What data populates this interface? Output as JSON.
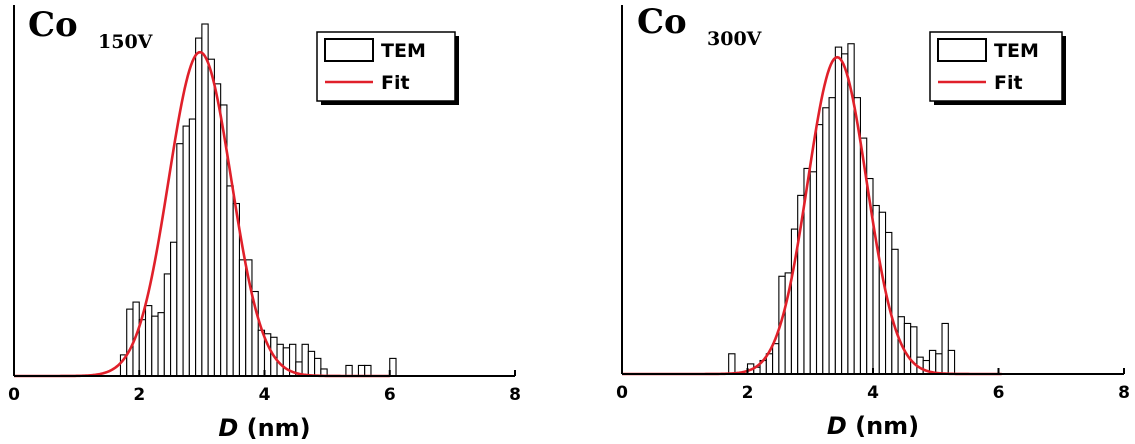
{
  "chart_data": [
    {
      "type": "bar",
      "panel_label": {
        "main": "Co",
        "sub": "150V"
      },
      "xlabel": {
        "symbol": "D",
        "unit": " (nm)"
      },
      "xlim": [
        0,
        8
      ],
      "xticks": [
        "0",
        "2",
        "4",
        "6",
        "8"
      ],
      "bin_width": 0.1,
      "bin_starts": [
        1.7,
        1.8,
        1.9,
        2.0,
        2.1,
        2.2,
        2.3,
        2.4,
        2.5,
        2.6,
        2.7,
        2.8,
        2.9,
        3.0,
        3.1,
        3.2,
        3.3,
        3.4,
        3.5,
        3.6,
        3.7,
        3.8,
        3.9,
        4.0,
        4.1,
        4.2,
        4.3,
        4.4,
        4.5,
        4.6,
        4.7,
        4.8,
        4.9,
        5.0,
        5.1,
        5.2,
        5.3,
        5.4,
        5.5,
        5.6,
        5.7,
        5.8,
        5.9,
        6.0
      ],
      "series": [
        {
          "name": "TEM",
          "values": [
            0.06,
            0.19,
            0.21,
            0.16,
            0.2,
            0.17,
            0.18,
            0.29,
            0.38,
            0.66,
            0.71,
            0.73,
            0.96,
            1.0,
            0.9,
            0.83,
            0.77,
            0.54,
            0.49,
            0.33,
            0.33,
            0.24,
            0.13,
            0.12,
            0.11,
            0.09,
            0.08,
            0.09,
            0.04,
            0.09,
            0.07,
            0.05,
            0.02,
            0,
            0,
            0,
            0.03,
            0,
            0.03,
            0.03,
            0,
            0,
            0,
            0.05
          ]
        },
        {
          "name": "Fit",
          "function": "gaussian",
          "center": 2.97,
          "sigma": 0.5,
          "amplitude": 0.92,
          "x_range": [
            0,
            6.0
          ]
        }
      ],
      "legend": {
        "position": "top-right",
        "entries": [
          "TEM",
          "Fit"
        ]
      },
      "colors": {
        "bars": "#000000",
        "bar_fill": "#ffffff",
        "fit": "#e0202a"
      }
    },
    {
      "type": "bar",
      "panel_label": {
        "main": "Co",
        "sub": "300V"
      },
      "xlabel": {
        "symbol": "D",
        "unit": " (nm)"
      },
      "xlim": [
        0,
        8
      ],
      "xticks": [
        "0",
        "2",
        "4",
        "6",
        "8"
      ],
      "bin_width": 0.1,
      "bin_starts": [
        1.7,
        1.8,
        1.9,
        2.0,
        2.1,
        2.2,
        2.3,
        2.4,
        2.5,
        2.6,
        2.7,
        2.8,
        2.9,
        3.0,
        3.1,
        3.2,
        3.3,
        3.4,
        3.5,
        3.6,
        3.7,
        3.8,
        3.9,
        4.0,
        4.1,
        4.2,
        4.3,
        4.4,
        4.5,
        4.6,
        4.7,
        4.8,
        4.9,
        5.0,
        5.1,
        5.2
      ],
      "series": [
        {
          "name": "TEM",
          "values": [
            0.06,
            0,
            0,
            0.03,
            0.02,
            0.04,
            0.06,
            0.09,
            0.29,
            0.3,
            0.43,
            0.53,
            0.61,
            0.6,
            0.74,
            0.79,
            0.82,
            0.97,
            0.95,
            0.98,
            0.82,
            0.7,
            0.58,
            0.5,
            0.48,
            0.42,
            0.37,
            0.17,
            0.15,
            0.14,
            0.05,
            0.04,
            0.07,
            0.06,
            0.15,
            0.07
          ]
        },
        {
          "name": "Fit",
          "function": "gaussian",
          "center": 3.43,
          "sigma": 0.47,
          "amplitude": 0.94,
          "x_range": [
            0,
            6.05
          ]
        }
      ],
      "legend": {
        "position": "top-right",
        "entries": [
          "TEM",
          "Fit"
        ]
      },
      "colors": {
        "bars": "#000000",
        "bar_fill": "#ffffff",
        "fit": "#e0202a"
      }
    }
  ]
}
